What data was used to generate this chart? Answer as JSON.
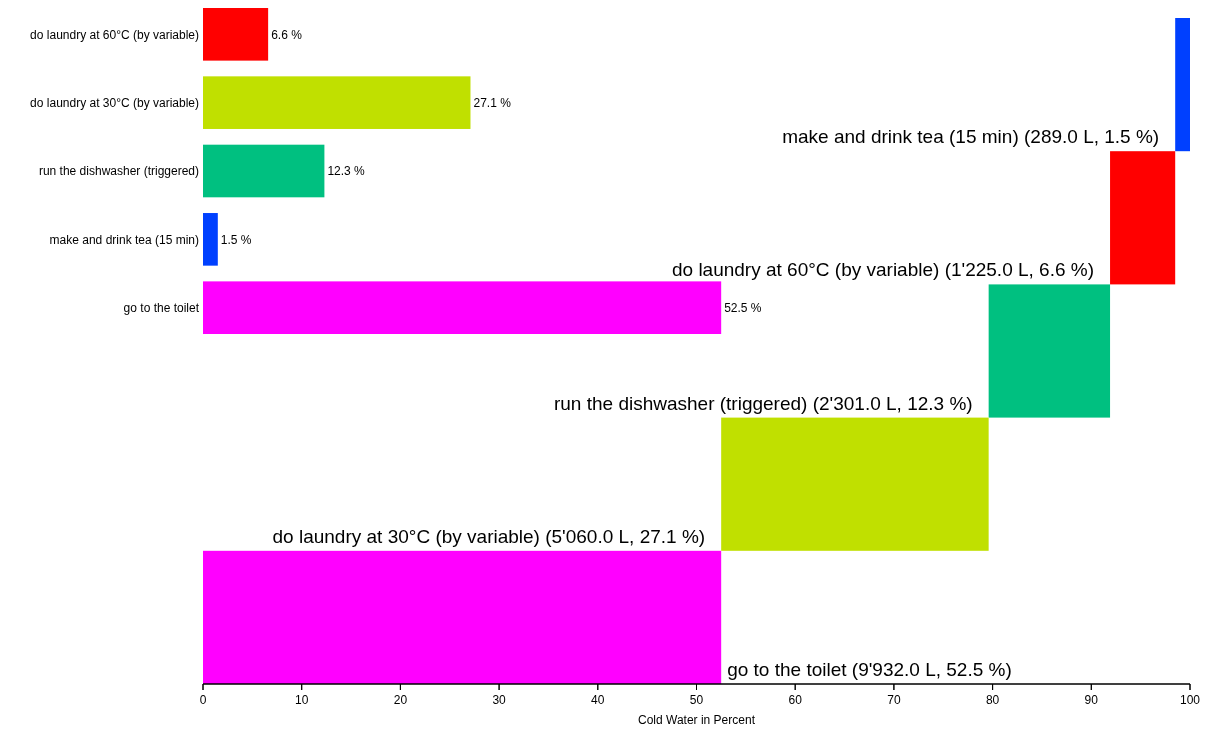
{
  "chart_data": [
    {
      "type": "bar",
      "orientation": "horizontal",
      "categories": [
        null,
        null,
        null,
        null,
        null
      ],
      "values": [
        1.5,
        6.6,
        12.3,
        27.1,
        52.5
      ],
      "base": [
        98.5,
        91.9,
        79.6,
        52.5,
        0
      ],
      "colors": [
        "#0040ff",
        "#ff0000",
        "#00c080",
        "#c0e000",
        "#ff00ff"
      ],
      "xlim": [
        0,
        100
      ],
      "xticks": [
        0,
        10,
        20,
        30,
        40,
        50,
        60,
        70,
        80,
        90,
        100
      ],
      "xlabel": "Cold Water in Percent",
      "annotations": [
        {
          "text": "make and drink tea (15 min) (289.0 L, 1.5 %)",
          "x": 98.5
        },
        {
          "text": "do laundry at 60°C (by variable) (1'225.0 L, 6.6 %)",
          "x": 91.9
        },
        {
          "text": "run the dishwasher (triggered) (2'301.0 L, 12.3 %)",
          "x": 79.6
        },
        {
          "text": "do laundry at 30°C (by variable) (5'060.0 L, 27.1 %)",
          "x": 52.5
        },
        {
          "text": "go to the toilet (9'932.0 L, 52.5 %)",
          "x": 52.5
        }
      ]
    },
    {
      "type": "bar",
      "orientation": "horizontal",
      "categories": [
        "do laundry at 60°C (by variable)",
        "do laundry at 30°C (by variable)",
        "run the dishwasher (triggered)",
        "make and drink tea (15 min)",
        "go to the toilet"
      ],
      "values": [
        6.6,
        27.1,
        12.3,
        1.5,
        52.5
      ],
      "colors": [
        "#ff0000",
        "#c0e000",
        "#00c080",
        "#0040ff",
        "#ff00ff"
      ],
      "value_labels": [
        "6.6 %",
        "27.1 %",
        "12.3 %",
        "1.5 %",
        "52.5 %"
      ],
      "xlim": [
        0,
        100
      ],
      "xticks": [
        0,
        10,
        20,
        30,
        40,
        50,
        60,
        70,
        80,
        90,
        100
      ],
      "tick_labels": "y"
    }
  ]
}
